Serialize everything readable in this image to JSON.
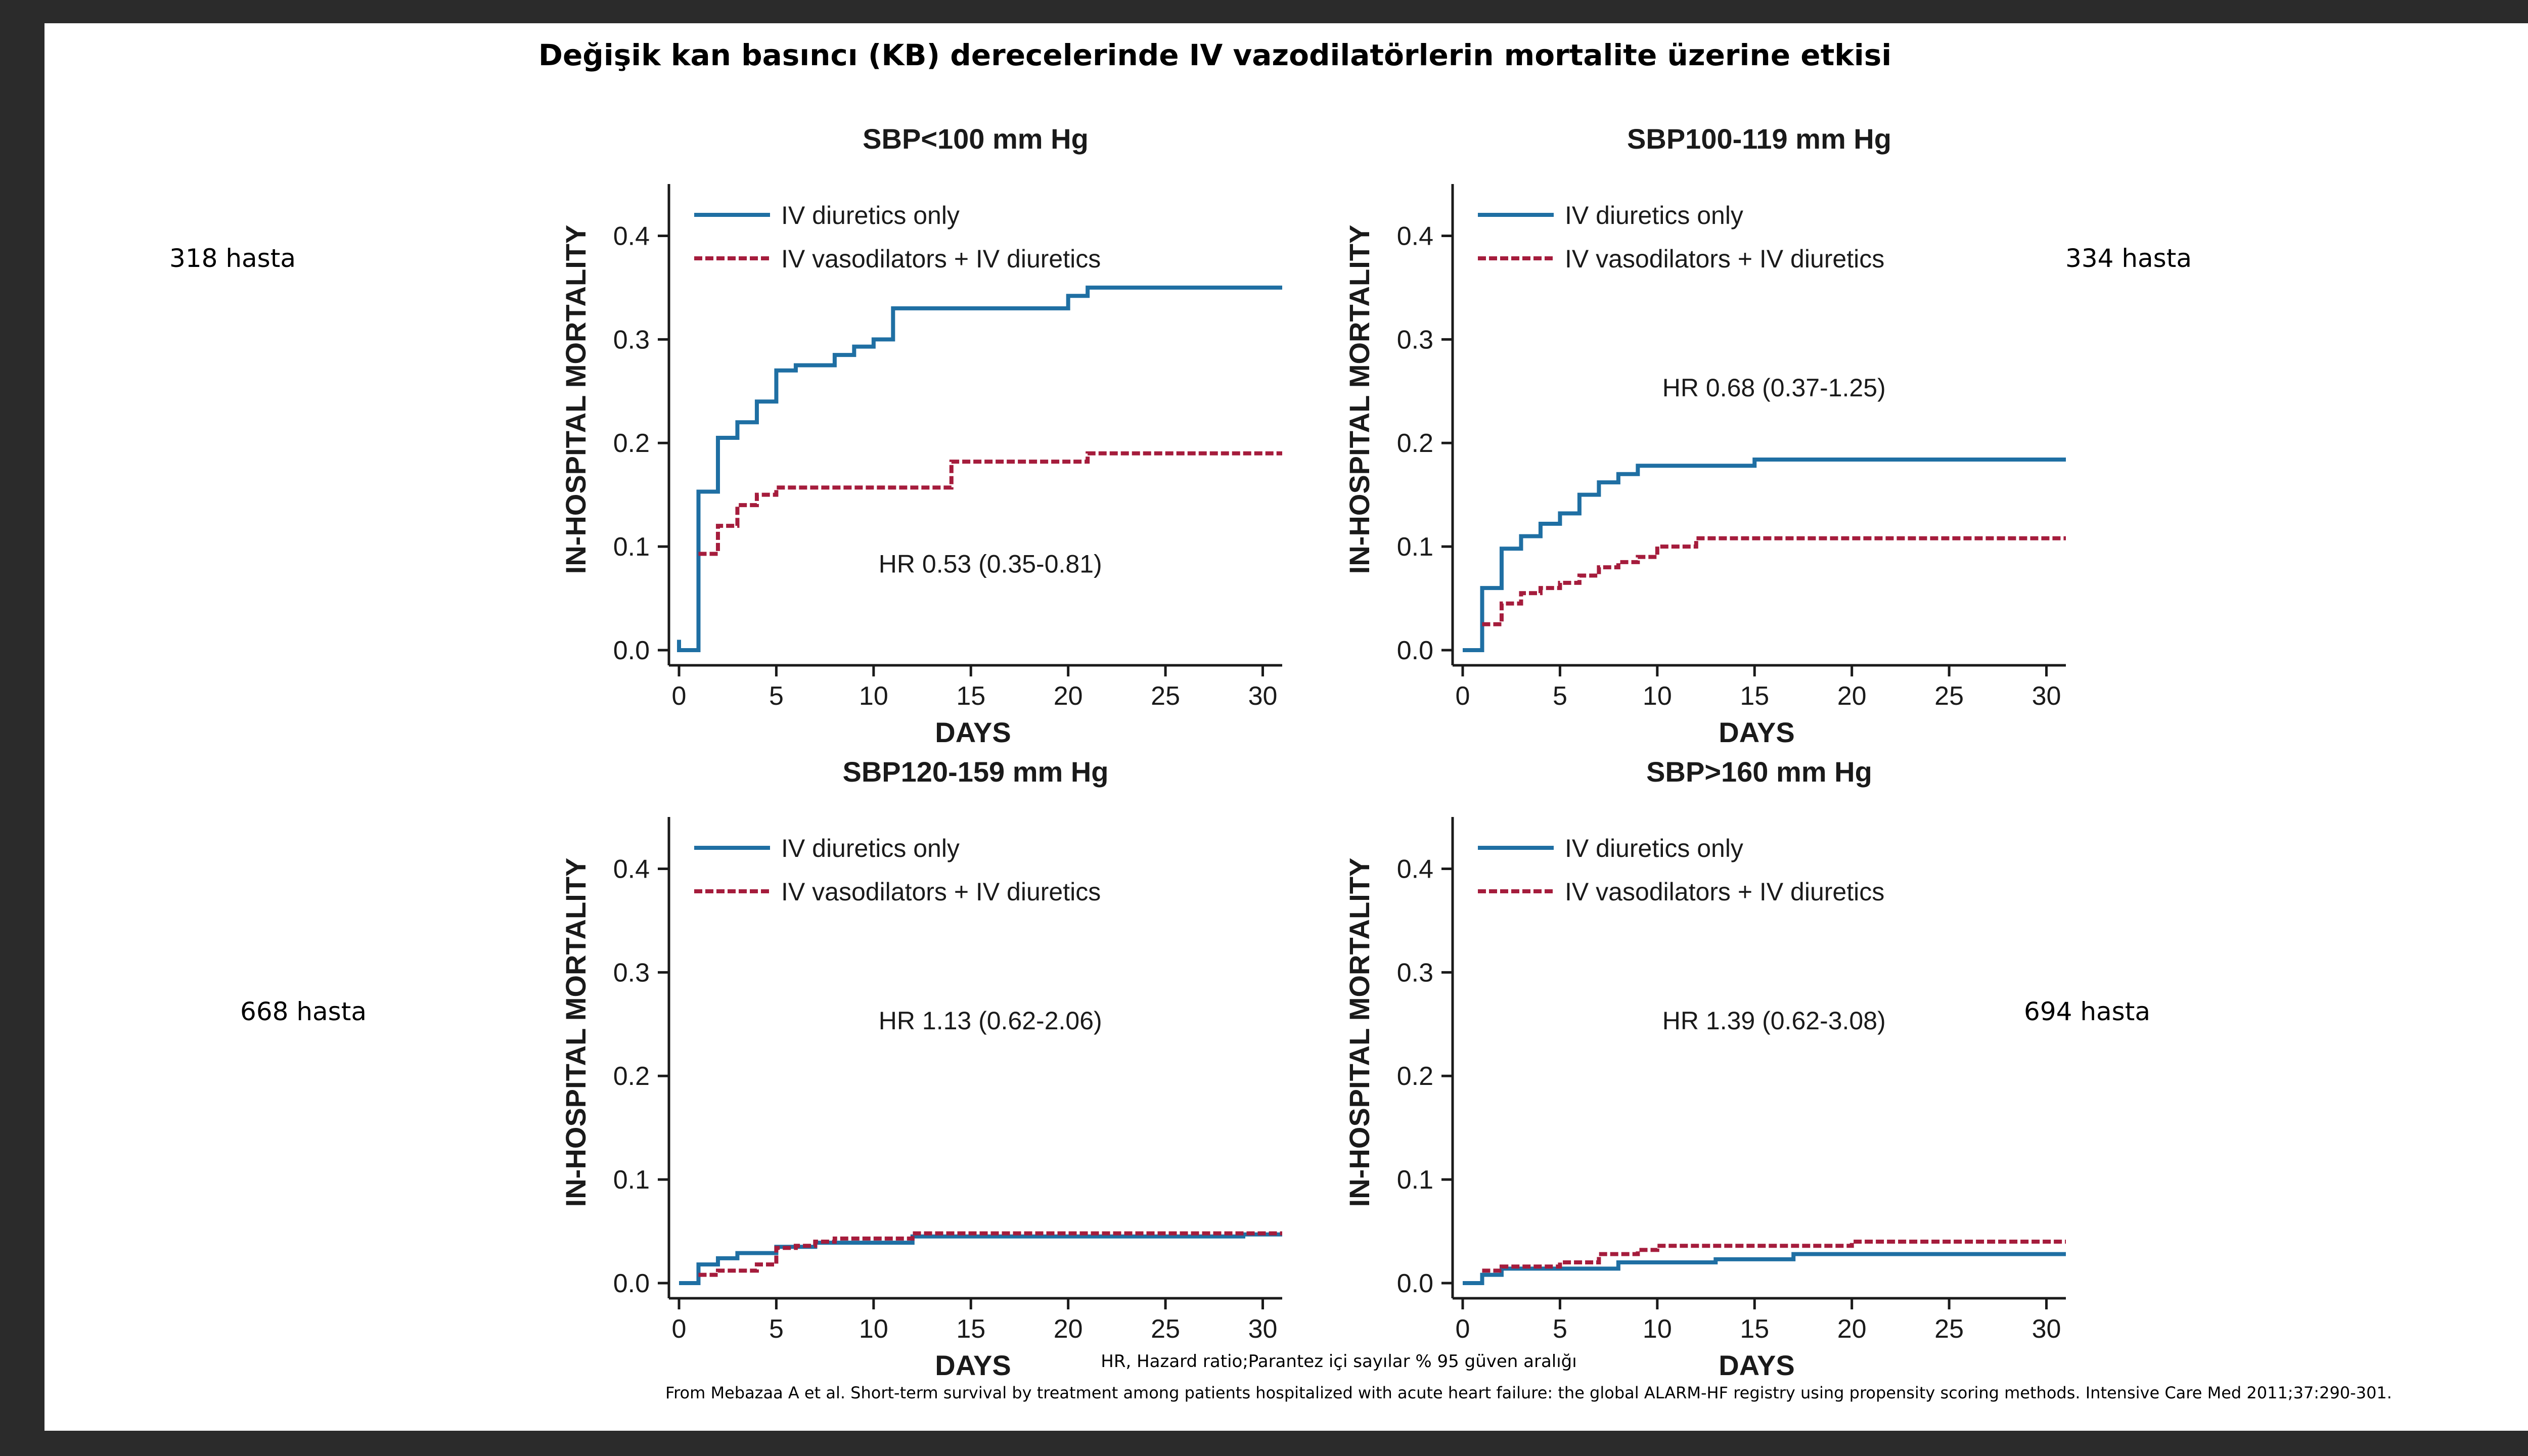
{
  "title": "Değişik kan basıncı (KB) derecelerinde IV vazodilatörlerin mortalite üzerine etkisi",
  "colors": {
    "diuretics_only": "#1f6fa3",
    "vasodilators": "#a51c3c",
    "axis": "#1a1a1a",
    "background": "#ffffff",
    "frame": "#2b2b2b"
  },
  "footnote": "HR, Hazard ratio;Parantez içi sayılar % 95 güven aralığı",
  "source": "From Mebazaa A et al. Short-term survival by treatment among patients hospitalized with acute heart failure: the global ALARM-HF registry using propensity scoring methods. Intensive Care Med 2011;37:290-301.",
  "patient_counts": [
    "318 hasta",
    "334 hasta",
    "668 hasta",
    "694 hasta"
  ],
  "chart_data": [
    {
      "type": "line",
      "step": true,
      "title": "SBP<100 mm Hg",
      "xlabel": "DAYS",
      "ylabel": "IN-HOSPITAL MORTALITY",
      "xlim": [
        0,
        31
      ],
      "ylim": [
        0,
        0.45
      ],
      "xticks": [
        0,
        5,
        10,
        15,
        20,
        25,
        30
      ],
      "yticks": [
        0.0,
        0.1,
        0.2,
        0.3,
        0.4
      ],
      "ytick_labels": [
        "0.0",
        "0.1",
        "0.2",
        "0.3",
        "0.4"
      ],
      "legend": [
        "IV diuretics only",
        "IV vasodilators + IV diuretics"
      ],
      "legend_position": "top-left",
      "annotation": "HR 0.53 (0.35-0.81)",
      "annotation_at": [
        16,
        0.075
      ],
      "series": [
        {
          "name": "IV diuretics only",
          "x": [
            0,
            0,
            1,
            1,
            2,
            3,
            4,
            5,
            6,
            8,
            9,
            10,
            11,
            20,
            21,
            31
          ],
          "y": [
            0.01,
            0.0,
            0.0,
            0.153,
            0.205,
            0.22,
            0.24,
            0.27,
            0.275,
            0.285,
            0.293,
            0.3,
            0.33,
            0.342,
            0.35,
            0.35
          ]
        },
        {
          "name": "IV vasodilators + IV diuretics",
          "x": [
            1,
            2,
            3,
            4,
            5,
            14,
            21,
            31
          ],
          "y": [
            0.093,
            0.12,
            0.14,
            0.15,
            0.157,
            0.182,
            0.19,
            0.19
          ]
        }
      ]
    },
    {
      "type": "line",
      "step": true,
      "title": "SBP100-119 mm Hg",
      "xlabel": "DAYS",
      "ylabel": "IN-HOSPITAL MORTALITY",
      "xlim": [
        0,
        31
      ],
      "ylim": [
        0,
        0.45
      ],
      "xticks": [
        0,
        5,
        10,
        15,
        20,
        25,
        30
      ],
      "yticks": [
        0.0,
        0.1,
        0.2,
        0.3,
        0.4
      ],
      "ytick_labels": [
        "0.0",
        "0.1",
        "0.2",
        "0.3",
        "0.4"
      ],
      "legend": [
        "IV diuretics only",
        "IV vasodilators + IV diuretics"
      ],
      "legend_position": "top-left",
      "annotation": "HR 0.68 (0.37-1.25)",
      "annotation_at": [
        16,
        0.245
      ],
      "series": [
        {
          "name": "IV diuretics only",
          "x": [
            0,
            1,
            2,
            3,
            4,
            5,
            6,
            7,
            8,
            9,
            15,
            31
          ],
          "y": [
            0.0,
            0.06,
            0.098,
            0.11,
            0.122,
            0.132,
            0.15,
            0.162,
            0.17,
            0.178,
            0.184,
            0.184
          ]
        },
        {
          "name": "IV vasodilators + IV diuretics",
          "x": [
            1,
            2,
            3,
            4,
            5,
            6,
            7,
            8,
            9,
            10,
            12,
            31
          ],
          "y": [
            0.025,
            0.045,
            0.055,
            0.06,
            0.065,
            0.072,
            0.08,
            0.085,
            0.09,
            0.1,
            0.108,
            0.108
          ]
        }
      ]
    },
    {
      "type": "line",
      "step": true,
      "title": "SBP120-159 mm Hg",
      "xlabel": "DAYS",
      "ylabel": "IN-HOSPITAL MORTALITY",
      "xlim": [
        0,
        31
      ],
      "ylim": [
        0,
        0.45
      ],
      "xticks": [
        0,
        5,
        10,
        15,
        20,
        25,
        30
      ],
      "yticks": [
        0.0,
        0.1,
        0.2,
        0.3,
        0.4
      ],
      "ytick_labels": [
        "0.0",
        "0.1",
        "0.2",
        "0.3",
        "0.4"
      ],
      "legend": [
        "IV diuretics only",
        "IV vasodilators + IV diuretics"
      ],
      "legend_position": "top-left",
      "annotation": "HR 1.13 (0.62-2.06)",
      "annotation_at": [
        16,
        0.245
      ],
      "series": [
        {
          "name": "IV diuretics only",
          "x": [
            0,
            1,
            2,
            3,
            5,
            7,
            8,
            12,
            29,
            31
          ],
          "y": [
            0.0,
            0.018,
            0.024,
            0.029,
            0.035,
            0.039,
            0.039,
            0.045,
            0.047,
            0.047
          ]
        },
        {
          "name": "IV vasodilators + IV diuretics",
          "x": [
            1,
            2,
            4,
            5,
            6,
            7,
            8,
            12,
            31
          ],
          "y": [
            0.008,
            0.012,
            0.018,
            0.034,
            0.036,
            0.04,
            0.043,
            0.048,
            0.048
          ]
        }
      ]
    },
    {
      "type": "line",
      "step": true,
      "title": "SBP>160 mm Hg",
      "xlabel": "DAYS",
      "ylabel": "IN-HOSPITAL MORTALITY",
      "xlim": [
        0,
        31
      ],
      "ylim": [
        0,
        0.45
      ],
      "xticks": [
        0,
        5,
        10,
        15,
        20,
        25,
        30
      ],
      "yticks": [
        0.0,
        0.1,
        0.2,
        0.3,
        0.4
      ],
      "ytick_labels": [
        "0.0",
        "0.1",
        "0.2",
        "0.3",
        "0.4"
      ],
      "legend": [
        "IV diuretics only",
        "IV vasodilators + IV diuretics"
      ],
      "legend_position": "top-left",
      "annotation": "HR 1.39 (0.62-3.08)",
      "annotation_at": [
        16,
        0.245
      ],
      "series": [
        {
          "name": "IV diuretics only",
          "x": [
            0,
            1,
            2,
            8,
            13,
            17,
            31
          ],
          "y": [
            0.0,
            0.008,
            0.014,
            0.02,
            0.023,
            0.028,
            0.028
          ]
        },
        {
          "name": "IV vasodilators + IV diuretics",
          "x": [
            1,
            2,
            5,
            7,
            9,
            10,
            20,
            31
          ],
          "y": [
            0.012,
            0.016,
            0.02,
            0.028,
            0.032,
            0.036,
            0.04,
            0.04
          ]
        }
      ]
    }
  ]
}
